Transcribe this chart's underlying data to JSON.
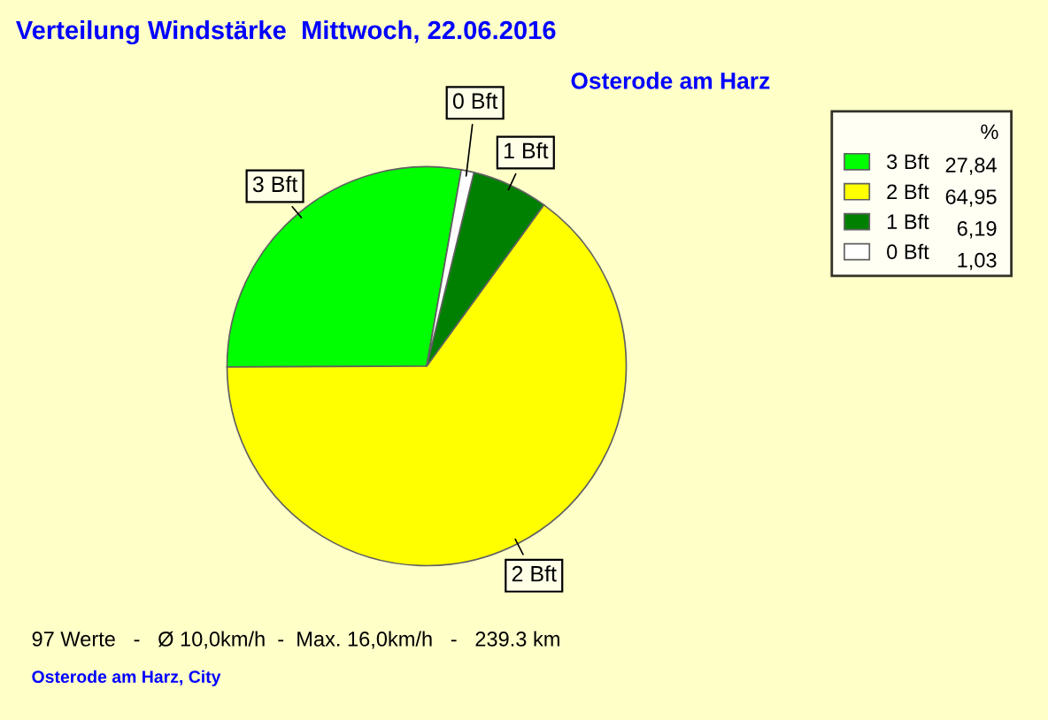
{
  "chart_data": {
    "type": "pie",
    "title": "Verteilung Windstärke  Mittwoch, 22.06.2016",
    "subtitle": "Osterode am Harz",
    "categories": [
      "3 Bft",
      "2 Bft",
      "1 Bft",
      "0 Bft"
    ],
    "values": [
      27.84,
      64.95,
      6.19,
      1.03
    ],
    "colors": [
      "#00ff00",
      "#ffff00",
      "#008000",
      "#ffffff"
    ],
    "value_labels": [
      "27,84",
      "64,95",
      "6,19",
      "1,03"
    ],
    "legend_title": "%",
    "legend": "top right",
    "annotations": [
      "97 Werte   -   Ø 10,0km/h  -  Max. 16,0km/h   -   239.3 km",
      "Osterode am Harz, City"
    ]
  }
}
